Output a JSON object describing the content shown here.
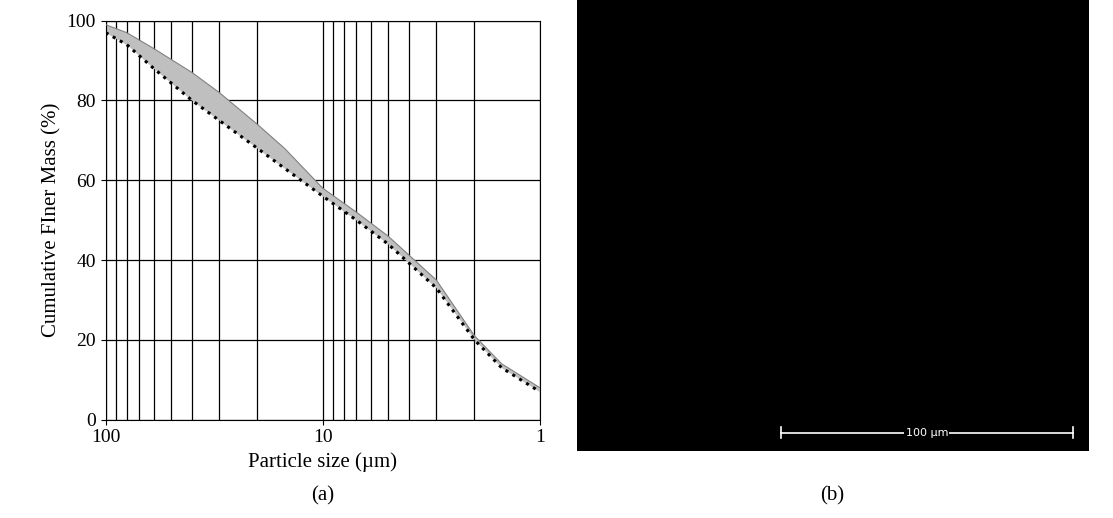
{
  "chart_data": [
    {
      "type": "line",
      "caption": "(a)",
      "x_label": "Particle size (µm)",
      "y_label": "Cumulative FIner Mass (%)",
      "log": "x",
      "grid": true,
      "x": [
        100,
        80,
        60,
        40,
        30,
        20,
        15,
        10,
        7,
        5,
        3,
        2,
        1.5,
        1
      ],
      "series": [
        {
          "type": "band",
          "color": "#bfbfbf",
          "values": [
            99,
            97,
            93,
            87,
            82,
            74,
            68,
            58,
            52,
            46,
            35,
            21,
            14,
            8
          ],
          "lower": [
            97,
            94,
            88,
            80,
            75,
            68,
            63,
            56,
            50,
            44,
            33,
            20,
            13,
            7
          ]
        },
        {
          "type": "line",
          "color": "#000000",
          "line_style": "dotted",
          "values": [
            97,
            94,
            88,
            80,
            75,
            68,
            63,
            56,
            50,
            44,
            33,
            20,
            13,
            7
          ]
        }
      ],
      "xlim": [
        100,
        1
      ],
      "xticks": [
        100,
        10,
        1
      ],
      "ylim": [
        0,
        100
      ],
      "yticks": [
        0,
        20,
        40,
        60,
        80,
        100
      ]
    }
  ],
  "image": {
    "type": "micrograph",
    "caption": "(b)",
    "field_width": 175,
    "scale_bar": {
      "length": 100,
      "label": "100 µm"
    }
  }
}
